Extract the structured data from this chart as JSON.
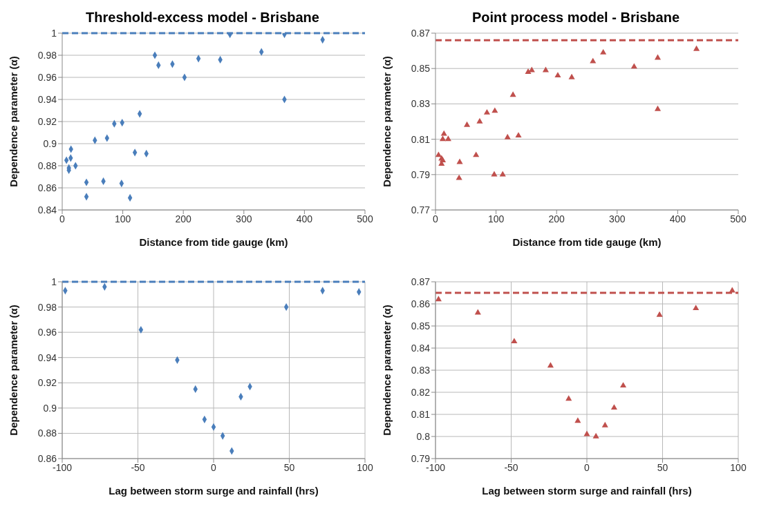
{
  "chart_data": [
    {
      "type": "scatter",
      "title": "Threshold-excess model - Brisbane",
      "xlabel": "Distance from tide gauge (km)",
      "ylabel": "Dependence parameter (α)",
      "marker": "diamond",
      "grid": "y",
      "x": [
        7,
        14.5,
        14,
        11,
        11,
        22,
        40,
        40,
        54,
        68,
        74,
        86,
        99,
        98,
        112,
        128,
        120,
        139,
        153,
        159,
        182,
        202,
        225,
        261,
        277,
        329,
        367,
        367,
        430
      ],
      "series": [
        {
          "color": "#4a7ebb",
          "values": [
            0.885,
            0.895,
            0.887,
            0.878,
            0.876,
            0.88,
            0.865,
            0.852,
            0.903,
            0.866,
            0.905,
            0.918,
            0.919,
            0.864,
            0.851,
            0.927,
            0.892,
            0.891,
            0.98,
            0.971,
            0.972,
            0.96,
            0.977,
            0.976,
            0.999,
            0.983,
            0.999,
            0.94,
            0.994
          ]
        }
      ],
      "xlim": [
        0,
        500
      ],
      "xticks": [
        0,
        100,
        200,
        300,
        400,
        500
      ],
      "ylim": [
        0.84,
        1
      ],
      "yticks": [
        0.84,
        0.86,
        0.88,
        0.9,
        0.92,
        0.94,
        0.96,
        0.98,
        1
      ],
      "ref_lines": [
        {
          "axis": "y",
          "value": 1,
          "color": "#4a7ebb",
          "line_style": "dashed"
        }
      ]
    },
    {
      "type": "scatter",
      "title": "Point process model - Brisbane",
      "xlabel": "Distance from tide gauge (km)",
      "ylabel": "Dependence parameter (α)",
      "marker": "triangle",
      "grid": "y",
      "x": [
        5,
        10,
        12,
        10,
        14,
        12,
        21,
        40,
        39,
        52,
        67,
        73,
        85,
        98,
        97,
        111,
        119,
        137,
        128,
        153,
        159,
        182,
        202,
        225,
        260,
        277,
        328,
        367,
        367,
        431
      ],
      "series": [
        {
          "color": "#c0504d",
          "values": [
            0.801,
            0.799,
            0.798,
            0.796,
            0.813,
            0.81,
            0.81,
            0.797,
            0.788,
            0.818,
            0.801,
            0.82,
            0.825,
            0.826,
            0.79,
            0.79,
            0.811,
            0.812,
            0.835,
            0.848,
            0.849,
            0.849,
            0.846,
            0.845,
            0.854,
            0.859,
            0.851,
            0.856,
            0.827,
            0.861
          ]
        }
      ],
      "xlim": [
        0,
        500
      ],
      "xticks": [
        0,
        100,
        200,
        300,
        400,
        500
      ],
      "ylim": [
        0.77,
        0.87
      ],
      "yticks": [
        0.77,
        0.79,
        0.81,
        0.83,
        0.85,
        0.87
      ],
      "ref_lines": [
        {
          "axis": "y",
          "value": 0.866,
          "color": "#c0504d",
          "line_style": "dashed"
        }
      ]
    },
    {
      "type": "scatter",
      "xlabel": "Lag between storm surge and rainfall (hrs)",
      "ylabel": "Dependence parameter (α)",
      "marker": "diamond",
      "grid": true,
      "x": [
        -98,
        -72,
        -48,
        -24,
        -12,
        -6,
        0,
        6,
        12,
        18,
        24,
        48,
        72,
        96
      ],
      "series": [
        {
          "color": "#4a7ebb",
          "values": [
            0.993,
            0.996,
            0.962,
            0.938,
            0.915,
            0.891,
            0.885,
            0.878,
            0.866,
            0.909,
            0.917,
            0.98,
            0.993,
            0.992
          ]
        }
      ],
      "xlim": [
        -100,
        100
      ],
      "xticks": [
        -100,
        -50,
        0,
        50,
        100
      ],
      "ylim": [
        0.86,
        1
      ],
      "yticks": [
        0.86,
        0.88,
        0.9,
        0.92,
        0.94,
        0.96,
        0.98,
        1
      ],
      "ref_lines": [
        {
          "axis": "y",
          "value": 1,
          "color": "#4a7ebb",
          "line_style": "dashed"
        }
      ]
    },
    {
      "type": "scatter",
      "xlabel": "Lag between storm surge and rainfall (hrs)",
      "ylabel": "Dependence parameter (α)",
      "marker": "triangle",
      "grid": true,
      "x": [
        -98,
        -72,
        -48,
        -24,
        -12,
        -6,
        0,
        6,
        12,
        18,
        24,
        48,
        72,
        96
      ],
      "series": [
        {
          "color": "#c0504d",
          "values": [
            0.862,
            0.856,
            0.843,
            0.832,
            0.817,
            0.807,
            0.801,
            0.8,
            0.805,
            0.813,
            0.823,
            0.855,
            0.858,
            0.866
          ]
        }
      ],
      "xlim": [
        -100,
        100
      ],
      "xticks": [
        -100,
        -50,
        0,
        50,
        100
      ],
      "ylim": [
        0.79,
        0.87
      ],
      "yticks": [
        0.79,
        0.8,
        0.81,
        0.82,
        0.83,
        0.84,
        0.85,
        0.86,
        0.87
      ],
      "ref_lines": [
        {
          "axis": "y",
          "value": 0.865,
          "color": "#c0504d",
          "line_style": "dashed"
        }
      ]
    }
  ]
}
